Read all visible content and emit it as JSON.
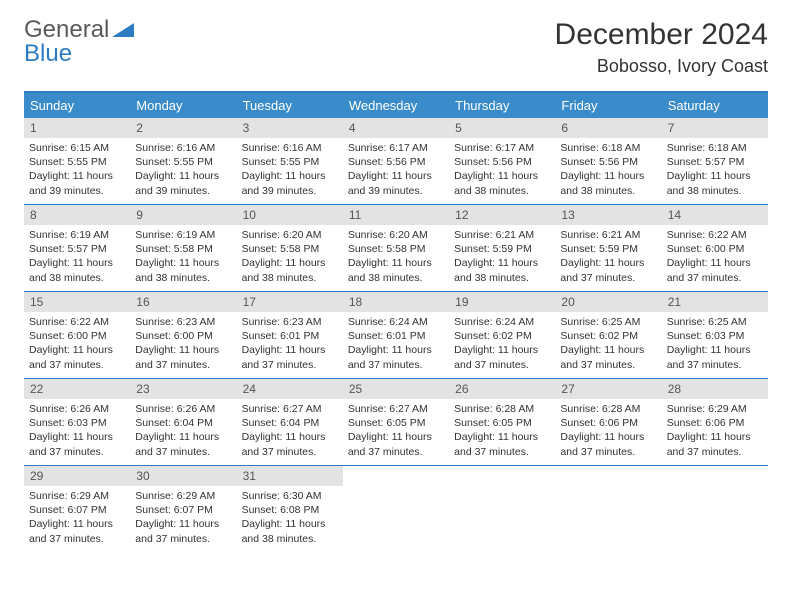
{
  "logo": {
    "text1": "General",
    "text2": "Blue"
  },
  "title": "December 2024",
  "location": "Bobosso, Ivory Coast",
  "day_headers": [
    "Sunday",
    "Monday",
    "Tuesday",
    "Wednesday",
    "Thursday",
    "Friday",
    "Saturday"
  ],
  "colors": {
    "header_bg": "#3a8bc0",
    "border": "#2d7bc0",
    "daynum_bg": "#e3e3e3",
    "logo_gray": "#5a5a5a",
    "logo_blue": "#2d7bc0"
  },
  "weeks": [
    [
      {
        "num": "1",
        "sunrise": "Sunrise: 6:15 AM",
        "sunset": "Sunset: 5:55 PM",
        "daylight": "Daylight: 11 hours and 39 minutes."
      },
      {
        "num": "2",
        "sunrise": "Sunrise: 6:16 AM",
        "sunset": "Sunset: 5:55 PM",
        "daylight": "Daylight: 11 hours and 39 minutes."
      },
      {
        "num": "3",
        "sunrise": "Sunrise: 6:16 AM",
        "sunset": "Sunset: 5:55 PM",
        "daylight": "Daylight: 11 hours and 39 minutes."
      },
      {
        "num": "4",
        "sunrise": "Sunrise: 6:17 AM",
        "sunset": "Sunset: 5:56 PM",
        "daylight": "Daylight: 11 hours and 39 minutes."
      },
      {
        "num": "5",
        "sunrise": "Sunrise: 6:17 AM",
        "sunset": "Sunset: 5:56 PM",
        "daylight": "Daylight: 11 hours and 38 minutes."
      },
      {
        "num": "6",
        "sunrise": "Sunrise: 6:18 AM",
        "sunset": "Sunset: 5:56 PM",
        "daylight": "Daylight: 11 hours and 38 minutes."
      },
      {
        "num": "7",
        "sunrise": "Sunrise: 6:18 AM",
        "sunset": "Sunset: 5:57 PM",
        "daylight": "Daylight: 11 hours and 38 minutes."
      }
    ],
    [
      {
        "num": "8",
        "sunrise": "Sunrise: 6:19 AM",
        "sunset": "Sunset: 5:57 PM",
        "daylight": "Daylight: 11 hours and 38 minutes."
      },
      {
        "num": "9",
        "sunrise": "Sunrise: 6:19 AM",
        "sunset": "Sunset: 5:58 PM",
        "daylight": "Daylight: 11 hours and 38 minutes."
      },
      {
        "num": "10",
        "sunrise": "Sunrise: 6:20 AM",
        "sunset": "Sunset: 5:58 PM",
        "daylight": "Daylight: 11 hours and 38 minutes."
      },
      {
        "num": "11",
        "sunrise": "Sunrise: 6:20 AM",
        "sunset": "Sunset: 5:58 PM",
        "daylight": "Daylight: 11 hours and 38 minutes."
      },
      {
        "num": "12",
        "sunrise": "Sunrise: 6:21 AM",
        "sunset": "Sunset: 5:59 PM",
        "daylight": "Daylight: 11 hours and 38 minutes."
      },
      {
        "num": "13",
        "sunrise": "Sunrise: 6:21 AM",
        "sunset": "Sunset: 5:59 PM",
        "daylight": "Daylight: 11 hours and 37 minutes."
      },
      {
        "num": "14",
        "sunrise": "Sunrise: 6:22 AM",
        "sunset": "Sunset: 6:00 PM",
        "daylight": "Daylight: 11 hours and 37 minutes."
      }
    ],
    [
      {
        "num": "15",
        "sunrise": "Sunrise: 6:22 AM",
        "sunset": "Sunset: 6:00 PM",
        "daylight": "Daylight: 11 hours and 37 minutes."
      },
      {
        "num": "16",
        "sunrise": "Sunrise: 6:23 AM",
        "sunset": "Sunset: 6:00 PM",
        "daylight": "Daylight: 11 hours and 37 minutes."
      },
      {
        "num": "17",
        "sunrise": "Sunrise: 6:23 AM",
        "sunset": "Sunset: 6:01 PM",
        "daylight": "Daylight: 11 hours and 37 minutes."
      },
      {
        "num": "18",
        "sunrise": "Sunrise: 6:24 AM",
        "sunset": "Sunset: 6:01 PM",
        "daylight": "Daylight: 11 hours and 37 minutes."
      },
      {
        "num": "19",
        "sunrise": "Sunrise: 6:24 AM",
        "sunset": "Sunset: 6:02 PM",
        "daylight": "Daylight: 11 hours and 37 minutes."
      },
      {
        "num": "20",
        "sunrise": "Sunrise: 6:25 AM",
        "sunset": "Sunset: 6:02 PM",
        "daylight": "Daylight: 11 hours and 37 minutes."
      },
      {
        "num": "21",
        "sunrise": "Sunrise: 6:25 AM",
        "sunset": "Sunset: 6:03 PM",
        "daylight": "Daylight: 11 hours and 37 minutes."
      }
    ],
    [
      {
        "num": "22",
        "sunrise": "Sunrise: 6:26 AM",
        "sunset": "Sunset: 6:03 PM",
        "daylight": "Daylight: 11 hours and 37 minutes."
      },
      {
        "num": "23",
        "sunrise": "Sunrise: 6:26 AM",
        "sunset": "Sunset: 6:04 PM",
        "daylight": "Daylight: 11 hours and 37 minutes."
      },
      {
        "num": "24",
        "sunrise": "Sunrise: 6:27 AM",
        "sunset": "Sunset: 6:04 PM",
        "daylight": "Daylight: 11 hours and 37 minutes."
      },
      {
        "num": "25",
        "sunrise": "Sunrise: 6:27 AM",
        "sunset": "Sunset: 6:05 PM",
        "daylight": "Daylight: 11 hours and 37 minutes."
      },
      {
        "num": "26",
        "sunrise": "Sunrise: 6:28 AM",
        "sunset": "Sunset: 6:05 PM",
        "daylight": "Daylight: 11 hours and 37 minutes."
      },
      {
        "num": "27",
        "sunrise": "Sunrise: 6:28 AM",
        "sunset": "Sunset: 6:06 PM",
        "daylight": "Daylight: 11 hours and 37 minutes."
      },
      {
        "num": "28",
        "sunrise": "Sunrise: 6:29 AM",
        "sunset": "Sunset: 6:06 PM",
        "daylight": "Daylight: 11 hours and 37 minutes."
      }
    ],
    [
      {
        "num": "29",
        "sunrise": "Sunrise: 6:29 AM",
        "sunset": "Sunset: 6:07 PM",
        "daylight": "Daylight: 11 hours and 37 minutes."
      },
      {
        "num": "30",
        "sunrise": "Sunrise: 6:29 AM",
        "sunset": "Sunset: 6:07 PM",
        "daylight": "Daylight: 11 hours and 37 minutes."
      },
      {
        "num": "31",
        "sunrise": "Sunrise: 6:30 AM",
        "sunset": "Sunset: 6:08 PM",
        "daylight": "Daylight: 11 hours and 38 minutes."
      },
      {
        "empty": true
      },
      {
        "empty": true
      },
      {
        "empty": true
      },
      {
        "empty": true
      }
    ]
  ]
}
